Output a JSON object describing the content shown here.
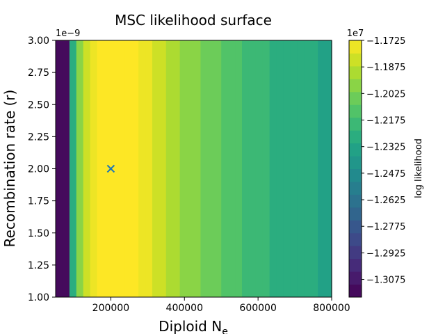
{
  "chart_data": {
    "type": "heatmap",
    "title": "MSC likelihood surface",
    "xlabel": "Diploid N",
    "xlabel_sub": "e",
    "ylabel": "Recombination rate (r)",
    "y_offset_label": "1e−9",
    "colorbar_label": "log likelihood",
    "colorbar_offset_label": "1e7",
    "xlim": [
      50000,
      800000
    ],
    "ylim": [
      1.0,
      3.0
    ],
    "x_ticks": [
      200000,
      400000,
      600000,
      800000
    ],
    "x_tick_labels": [
      "200000",
      "400000",
      "600000",
      "800000"
    ],
    "y_ticks": [
      1.0,
      1.25,
      1.5,
      1.75,
      2.0,
      2.25,
      2.5,
      2.75,
      3.0
    ],
    "y_tick_labels": [
      "1.00",
      "1.25",
      "1.50",
      "1.75",
      "2.00",
      "2.25",
      "2.50",
      "2.75",
      "3.00"
    ],
    "colorbar_range": [
      -1.3175,
      -1.1725
    ],
    "colorbar_ticks": [
      -1.1725,
      -1.1875,
      -1.2025,
      -1.2175,
      -1.2325,
      -1.2475,
      -1.2625,
      -1.2775,
      -1.2925,
      -1.3075
    ],
    "colorbar_tick_labels": [
      "−1.1725",
      "−1.1875",
      "−1.2025",
      "−1.2175",
      "−1.2325",
      "−1.2475",
      "−1.2625",
      "−1.2775",
      "−1.2925",
      "−1.3075"
    ],
    "colormap": "viridis",
    "surface_varies_along": "x",
    "x_grid": [
      50000,
      68750,
      87500,
      106250,
      125000,
      143750,
      162500,
      181250,
      200000,
      218750,
      237500,
      256250,
      275000,
      293750,
      312500,
      331250,
      350000,
      368750,
      387500,
      406250,
      425000,
      443750,
      462500,
      481250,
      500000,
      518750,
      537500,
      556250,
      575000,
      593750,
      612500,
      631250,
      650000,
      668750,
      687500,
      706250,
      725000,
      743750,
      762500,
      781250,
      800000
    ],
    "loglik_values": [
      -1.3175,
      -1.3175,
      -1.225,
      -1.195,
      -1.18,
      -1.175,
      -1.1725,
      -1.1725,
      -1.1725,
      -1.1725,
      -1.1725,
      -1.1725,
      -1.175,
      -1.178,
      -1.1815,
      -1.185,
      -1.1885,
      -1.192,
      -1.195,
      -1.198,
      -1.201,
      -1.2035,
      -1.206,
      -1.2085,
      -1.211,
      -1.213,
      -1.215,
      -1.217,
      -1.219,
      -1.2205,
      -1.222,
      -1.2235,
      -1.225,
      -1.2265,
      -1.2275,
      -1.2285,
      -1.2295,
      -1.2305,
      -1.2315,
      -1.2325,
      -1.2335
    ],
    "marker": {
      "x": 200000,
      "y": 2.0,
      "symbol": "x",
      "color": "#1f77b4"
    }
  }
}
